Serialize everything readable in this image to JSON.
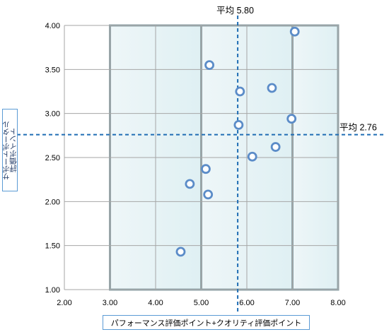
{
  "chart_data": {
    "type": "scatter",
    "xlabel": "パフォーマンス評価ポイント+クオリティ評価ポイント",
    "ylabel": "サポートポータル\n評価ポイント",
    "xlim": [
      2.0,
      8.0
    ],
    "ylim": [
      1.0,
      4.0
    ],
    "x_ticks": [
      "2.00",
      "3.00",
      "4.00",
      "5.00",
      "6.00",
      "7.00",
      "8.00"
    ],
    "y_ticks": [
      "1.00",
      "1.50",
      "2.00",
      "2.50",
      "3.00",
      "3.50",
      "4.00"
    ],
    "grid": true,
    "highlight_regions": [
      {
        "x": [
          3.0,
          5.0
        ],
        "y": [
          1.0,
          4.0
        ]
      },
      {
        "x": [
          5.0,
          7.0
        ],
        "y": [
          1.0,
          4.0
        ]
      },
      {
        "x": [
          7.0,
          8.0
        ],
        "y": [
          1.0,
          4.0
        ]
      }
    ],
    "points": [
      {
        "x": 7.05,
        "y": 3.93
      },
      {
        "x": 5.18,
        "y": 3.55
      },
      {
        "x": 5.85,
        "y": 3.25
      },
      {
        "x": 6.55,
        "y": 3.29
      },
      {
        "x": 5.82,
        "y": 2.87
      },
      {
        "x": 6.98,
        "y": 2.94
      },
      {
        "x": 6.63,
        "y": 2.62
      },
      {
        "x": 6.12,
        "y": 2.51
      },
      {
        "x": 5.1,
        "y": 2.37
      },
      {
        "x": 4.75,
        "y": 2.2
      },
      {
        "x": 5.15,
        "y": 2.08
      },
      {
        "x": 4.55,
        "y": 1.43
      }
    ],
    "avg_x": {
      "value": 5.8,
      "label": "平均 5.80"
    },
    "avg_y": {
      "value": 2.76,
      "label": "平均 2.76"
    },
    "colors": {
      "marker": "#5b8cc8",
      "avg_line": "#1f6db4",
      "region_border": "#8ea3a8",
      "region_fill_left": "#eef6f8",
      "region_fill_right": "#dff0f3",
      "grid": "#a6a6a6"
    }
  }
}
